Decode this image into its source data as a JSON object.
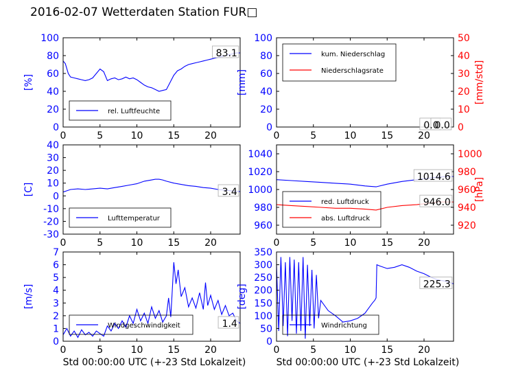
{
  "title": "2016-02-07 Wetterdaten Station FUR□",
  "colors": {
    "blue": "#0000ff",
    "red": "#ff0000",
    "lightblue": "#8080ff",
    "black": "#000000"
  },
  "chart_data": [
    {
      "type": "line",
      "panel": "top-left",
      "xlim": [
        0,
        24
      ],
      "ylim": [
        0,
        100
      ],
      "xticks": [
        0,
        5,
        10,
        15,
        20
      ],
      "yticks": [
        0,
        20,
        40,
        60,
        80,
        100
      ],
      "ylabel": "[%]",
      "xlabel": "",
      "legend_position": "lower-left",
      "series": [
        {
          "name": "rel. Luftfeuchte",
          "color": "#0000ff",
          "x": [
            0,
            0.3,
            0.7,
            1.0,
            1.5,
            2.0,
            2.5,
            3.0,
            3.5,
            4.0,
            4.5,
            5.0,
            5.5,
            6.0,
            6.5,
            7.0,
            7.5,
            8.0,
            8.5,
            9.0,
            9.5,
            10.0,
            10.5,
            11.0,
            11.5,
            12.0,
            12.5,
            13.0,
            13.5,
            14.0,
            14.5,
            15.0,
            15.5,
            16.0,
            16.5,
            17.0,
            17.5,
            18.0,
            18.5,
            19.0,
            19.5,
            20.0,
            20.5,
            21.0,
            21.5,
            22.0,
            22.5,
            23.0,
            23.5,
            24.0
          ],
          "y": [
            74,
            71,
            60,
            56,
            55,
            54,
            53,
            52,
            53,
            55,
            60,
            65,
            62,
            52,
            54,
            55,
            53,
            54,
            56,
            54,
            55,
            53,
            50,
            47,
            45,
            44,
            42,
            40,
            41,
            42,
            50,
            58,
            63,
            65,
            68,
            70,
            71,
            72,
            73,
            74,
            75,
            76,
            77,
            78,
            79,
            80,
            81,
            82,
            83,
            83
          ]
        }
      ],
      "annotations": [
        "83.1"
      ]
    },
    {
      "type": "line",
      "panel": "top-right",
      "xlim": [
        0,
        24
      ],
      "ylim": [
        0,
        100
      ],
      "y2lim": [
        0,
        50
      ],
      "xticks": [
        0,
        5,
        10,
        15,
        20
      ],
      "yticks": [
        0,
        20,
        40,
        60,
        80,
        100
      ],
      "y2ticks": [
        0,
        10,
        20,
        30,
        40,
        50
      ],
      "ylabel": "[mm]",
      "y2label": "[mm/std]",
      "xlabel": "",
      "legend_position": "upper-left",
      "series": [
        {
          "name": "kum. Niederschlag",
          "color": "#0000ff",
          "axis": "left",
          "x": [
            0,
            24
          ],
          "y": [
            0,
            0
          ]
        },
        {
          "name": "Niederschlagsrate",
          "color": "#ff0000",
          "axis": "right",
          "x": [
            0,
            24
          ],
          "y": [
            0,
            0
          ]
        }
      ],
      "annotations": [
        "0.0",
        "0.0"
      ]
    },
    {
      "type": "line",
      "panel": "middle-left",
      "xlim": [
        0,
        24
      ],
      "ylim": [
        -30,
        40
      ],
      "xticks": [
        0,
        5,
        10,
        15,
        20
      ],
      "yticks": [
        -30,
        -20,
        -10,
        0,
        10,
        20,
        30,
        40
      ],
      "ylabel": "[C]",
      "xlabel": "",
      "legend_position": "lower-left",
      "series": [
        {
          "name": "Lufttemperatur",
          "color": "#0000ff",
          "x": [
            0,
            0.5,
            1,
            2,
            3,
            4,
            5,
            6,
            7,
            8,
            9,
            10,
            11,
            12,
            12.5,
            13,
            13.5,
            14,
            15,
            16,
            17,
            18,
            19,
            20,
            21,
            22,
            23,
            24
          ],
          "y": [
            3,
            4,
            5,
            5.5,
            5,
            5.5,
            6,
            5.5,
            6.5,
            7.5,
            8.5,
            9.5,
            11.5,
            12.5,
            13,
            13,
            12.5,
            11.5,
            10,
            9,
            8,
            7.5,
            6.5,
            6,
            5,
            4.5,
            3.8,
            3.4
          ]
        }
      ],
      "annotations": [
        "3.4"
      ]
    },
    {
      "type": "line",
      "panel": "middle-right",
      "xlim": [
        0,
        24
      ],
      "ylim": [
        950,
        1050
      ],
      "y2lim": [
        910,
        1010
      ],
      "xticks": [
        0,
        5,
        10,
        15,
        20
      ],
      "yticks": [
        960,
        980,
        1000,
        1020,
        1040
      ],
      "y2ticks": [
        920,
        940,
        960,
        980,
        1000
      ],
      "ylabel": "",
      "y2label": "[hPa]",
      "xlabel": "",
      "legend_position": "lower-left",
      "series": [
        {
          "name": "red. Luftdruck",
          "color": "#0000ff",
          "axis": "left",
          "x": [
            0,
            2,
            4,
            6,
            8,
            10,
            12,
            13.5,
            15,
            17,
            19,
            21,
            22,
            24
          ],
          "y": [
            1011,
            1010,
            1009,
            1008,
            1007,
            1006,
            1004,
            1003,
            1006,
            1009,
            1011,
            1013,
            1014,
            1014.6
          ]
        },
        {
          "name": "abs. Luftdruck",
          "color": "#ff0000",
          "axis": "right",
          "x": [
            0,
            2,
            4,
            6,
            8,
            10,
            12,
            13.5,
            15,
            17,
            19,
            21,
            22,
            24
          ],
          "y": [
            943,
            942,
            941,
            940,
            939,
            939,
            938,
            937,
            940,
            942,
            943,
            945,
            946,
            946
          ]
        }
      ],
      "annotations": [
        "1014.6",
        "946.0"
      ]
    },
    {
      "type": "line",
      "panel": "bottom-left",
      "xlim": [
        0,
        24
      ],
      "ylim": [
        0,
        7
      ],
      "xticks": [
        0,
        5,
        10,
        15,
        20
      ],
      "yticks": [
        0,
        1,
        2,
        3,
        4,
        5,
        6,
        7
      ],
      "ylabel": "[m/s]",
      "xlabel": "Std 00:00:00 UTC (+-23 Std Lokalzeit)",
      "legend_position": "lower-left",
      "series": [
        {
          "name": "Windgeschwindigkeit",
          "color": "#0000ff",
          "x": [
            0,
            0.5,
            1,
            1.5,
            2,
            2.5,
            3,
            3.5,
            4,
            4.5,
            5,
            5.5,
            6,
            6.5,
            7,
            7.5,
            8,
            8.5,
            9,
            9.5,
            10,
            10.5,
            11,
            11.5,
            12,
            12.5,
            13,
            13.5,
            14,
            14.3,
            14.6,
            14.8,
            15,
            15.3,
            15.6,
            16,
            16.5,
            17,
            17.5,
            18,
            18.5,
            19,
            19.3,
            19.6,
            20,
            20.5,
            21,
            21.5,
            22,
            22.5,
            23,
            23.5,
            24
          ],
          "y": [
            0.5,
            1.0,
            0.4,
            0.8,
            0.3,
            0.9,
            0.5,
            0.7,
            0.4,
            0.8,
            0.6,
            0.4,
            1.2,
            0.8,
            1.4,
            1.0,
            1.6,
            1.1,
            2.0,
            1.4,
            2.5,
            1.6,
            2.2,
            1.4,
            2.7,
            1.8,
            2.4,
            1.5,
            2.0,
            3.4,
            1.9,
            4.0,
            6.2,
            4.5,
            5.6,
            3.5,
            4.2,
            2.7,
            3.4,
            2.6,
            3.8,
            2.5,
            4.6,
            2.8,
            3.6,
            2.5,
            3.2,
            2.1,
            2.8,
            2.0,
            2.2,
            1.6,
            1.4
          ]
        }
      ],
      "annotations": [
        "1.4"
      ]
    },
    {
      "type": "line",
      "panel": "bottom-right",
      "xlim": [
        0,
        24
      ],
      "ylim": [
        0,
        350
      ],
      "xticks": [
        0,
        5,
        10,
        15,
        20
      ],
      "yticks": [
        0,
        50,
        100,
        150,
        200,
        250,
        300,
        350
      ],
      "ylabel": "[deg]",
      "xlabel": "Std 00:00:00 UTC (+-23 Std Lokalzeit)",
      "legend_position": "lower-left",
      "series": [
        {
          "name": "Windrichtung",
          "color": "#0000ff",
          "x": [
            0,
            0.3,
            0.6,
            0.9,
            1.2,
            1.5,
            1.8,
            2.1,
            2.4,
            2.7,
            3.0,
            3.3,
            3.6,
            3.9,
            4.2,
            4.5,
            4.8,
            5.1,
            5.4,
            5.7,
            6,
            7,
            8,
            9,
            10,
            11,
            12,
            12.5,
            13,
            13.3,
            13.5,
            13.6,
            14,
            15,
            16,
            17,
            18,
            19,
            20,
            21,
            22,
            23,
            23.5,
            24
          ],
          "y": [
            300,
            40,
            330,
            60,
            310,
            20,
            330,
            80,
            320,
            30,
            310,
            40,
            330,
            10,
            300,
            60,
            280,
            50,
            260,
            90,
            160,
            120,
            100,
            75,
            80,
            90,
            110,
            130,
            150,
            160,
            170,
            300,
            295,
            285,
            290,
            300,
            290,
            275,
            265,
            250,
            240,
            235,
            230,
            225
          ]
        }
      ],
      "annotations": [
        "225.3"
      ]
    }
  ]
}
